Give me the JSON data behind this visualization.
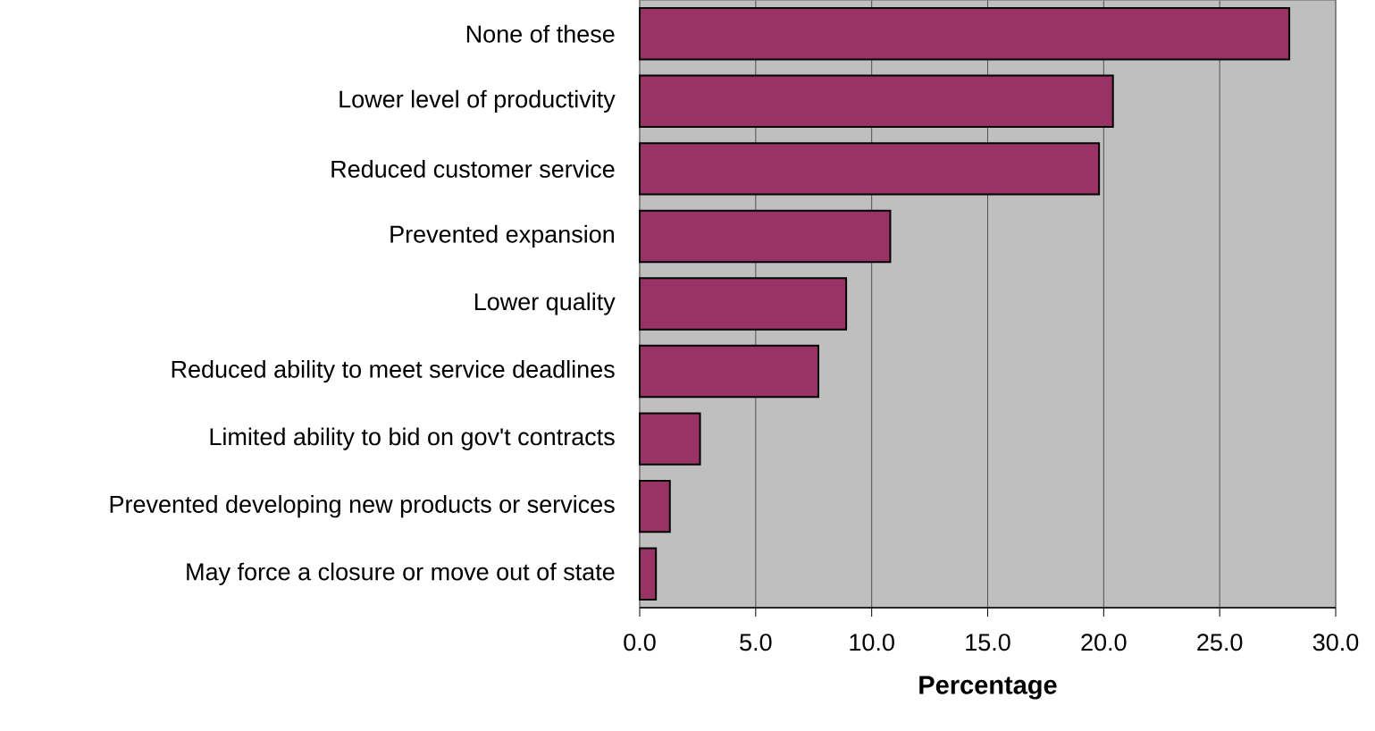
{
  "chart_data": {
    "type": "bar",
    "orientation": "horizontal",
    "xlabel": "Percentage",
    "categories": [
      "None of these",
      "Lower level of productivity",
      "Reduced customer service",
      "Prevented expansion",
      "Lower quality",
      "Reduced ability to meet service deadlines",
      "Limited ability to bid on gov't contracts",
      "Prevented developing new products or services",
      "May force a closure or move out of state"
    ],
    "values": [
      28.0,
      20.4,
      19.8,
      10.8,
      8.9,
      7.7,
      2.6,
      1.3,
      0.7
    ],
    "color": "#993366",
    "xlim": [
      0,
      30
    ],
    "xticks": [
      {
        "value": 0,
        "label": "0.0"
      },
      {
        "value": 5,
        "label": "5.0"
      },
      {
        "value": 10,
        "label": "10.0"
      },
      {
        "value": 15,
        "label": "15.0"
      },
      {
        "value": 20,
        "label": "20.0"
      },
      {
        "value": 25,
        "label": "25.0"
      },
      {
        "value": 30,
        "label": "30.0"
      }
    ],
    "grid": "x"
  }
}
